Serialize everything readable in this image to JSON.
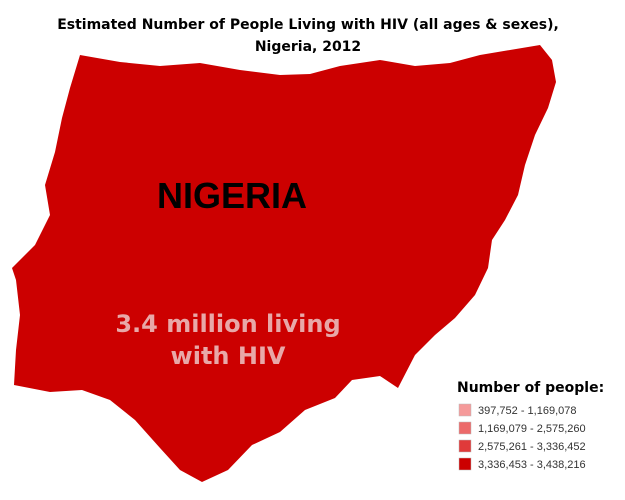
{
  "title": [
    "Estimated Number of People Living with HIV (all ages & sexes),",
    "Nigeria, 2012"
  ],
  "map": {
    "country": "NIGERIA",
    "fill": "#cc0000",
    "annotation": [
      "3.4 million living",
      "with HIV"
    ]
  },
  "legend": {
    "title": "Number of people:",
    "items": [
      {
        "label": "397,752 - 1,169,078",
        "color": "#f59a9a"
      },
      {
        "label": "1,169,079 - 2,575,260",
        "color": "#ec6a6a"
      },
      {
        "label": "2,575,261 - 3,336,452",
        "color": "#e03a3a"
      },
      {
        "label": "3,336,453 - 3,438,216",
        "color": "#cc0000"
      }
    ]
  }
}
